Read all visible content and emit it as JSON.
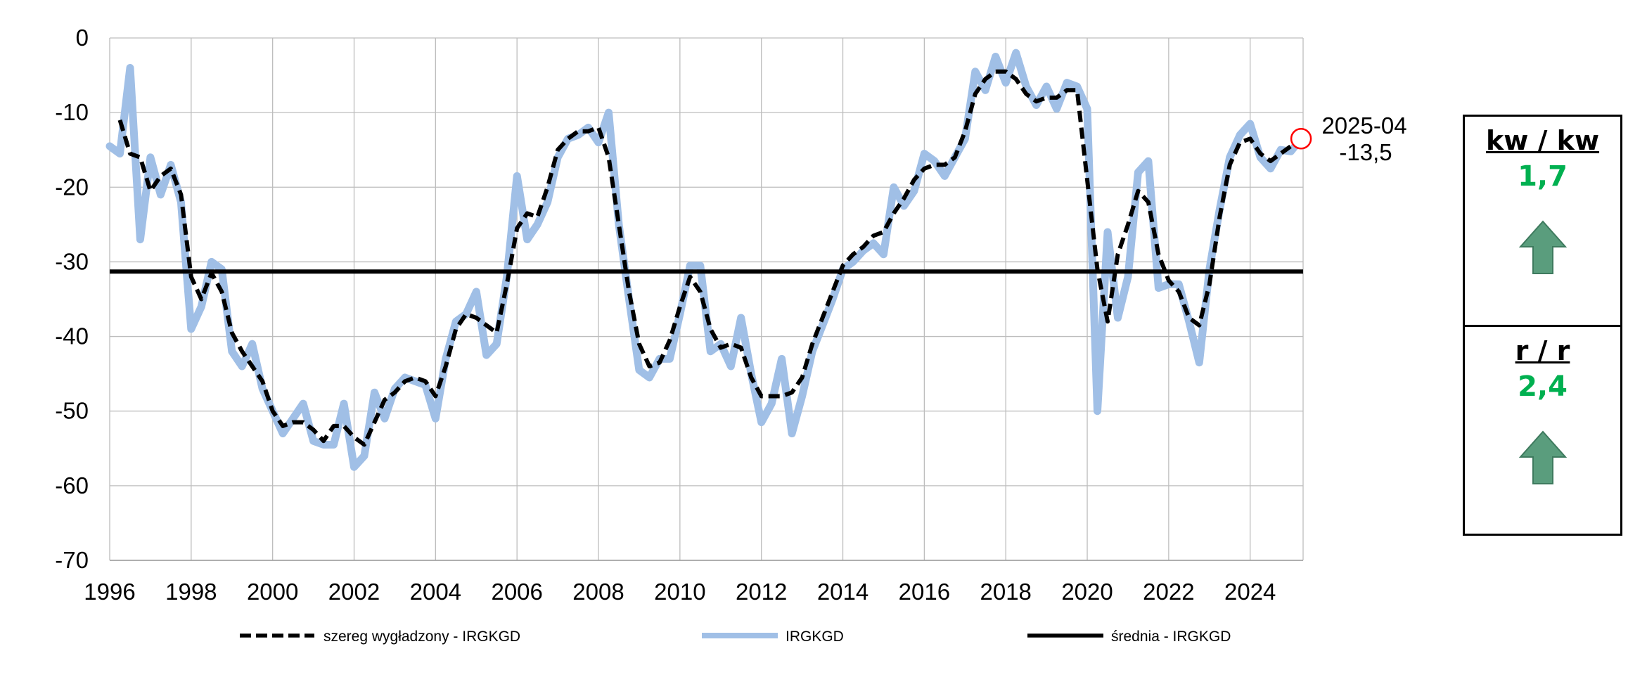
{
  "chart_data": {
    "type": "line",
    "title": "",
    "xlabel": "",
    "ylabel": "",
    "xlim": [
      1996,
      2025.3
    ],
    "ylim": [
      -70,
      0
    ],
    "x_ticks": [
      "1996",
      "1998",
      "2000",
      "2002",
      "2004",
      "2006",
      "2008",
      "2010",
      "2012",
      "2014",
      "2016",
      "2018",
      "2020",
      "2022",
      "2024"
    ],
    "y_ticks": [
      "0",
      "-10",
      "-20",
      "-30",
      "-40",
      "-50",
      "-60",
      "-70"
    ],
    "grid": true,
    "legend_position": "bottom",
    "series": [
      {
        "name": "IRGKGD",
        "color": "#a0bfe6",
        "style": "thick-solid",
        "points": [
          [
            1996.0,
            -14.5
          ],
          [
            1996.25,
            -15.5
          ],
          [
            1996.5,
            -4
          ],
          [
            1996.75,
            -27
          ],
          [
            1997.0,
            -16
          ],
          [
            1997.25,
            -21
          ],
          [
            1997.5,
            -17
          ],
          [
            1997.75,
            -22
          ],
          [
            1998.0,
            -39
          ],
          [
            1998.25,
            -36
          ],
          [
            1998.5,
            -30
          ],
          [
            1998.75,
            -31
          ],
          [
            1999.0,
            -42
          ],
          [
            1999.25,
            -44
          ],
          [
            1999.5,
            -41
          ],
          [
            1999.75,
            -47
          ],
          [
            2000.0,
            -50
          ],
          [
            2000.25,
            -53
          ],
          [
            2000.5,
            -51
          ],
          [
            2000.75,
            -49
          ],
          [
            2001.0,
            -54
          ],
          [
            2001.25,
            -54.5
          ],
          [
            2001.5,
            -54.5
          ],
          [
            2001.75,
            -49
          ],
          [
            2002.0,
            -57.5
          ],
          [
            2002.25,
            -56
          ],
          [
            2002.5,
            -47.5
          ],
          [
            2002.75,
            -51
          ],
          [
            2003.0,
            -47
          ],
          [
            2003.25,
            -45.5
          ],
          [
            2003.5,
            -46
          ],
          [
            2003.75,
            -46.5
          ],
          [
            2004.0,
            -51
          ],
          [
            2004.25,
            -43
          ],
          [
            2004.5,
            -38
          ],
          [
            2004.75,
            -37
          ],
          [
            2005.0,
            -34
          ],
          [
            2005.25,
            -42.5
          ],
          [
            2005.5,
            -41
          ],
          [
            2005.75,
            -32
          ],
          [
            2006.0,
            -18.5
          ],
          [
            2006.25,
            -27
          ],
          [
            2006.5,
            -25
          ],
          [
            2006.75,
            -22
          ],
          [
            2007.0,
            -16
          ],
          [
            2007.25,
            -13.5
          ],
          [
            2007.5,
            -13
          ],
          [
            2007.75,
            -12
          ],
          [
            2008.0,
            -14
          ],
          [
            2008.25,
            -10
          ],
          [
            2008.5,
            -25
          ],
          [
            2008.75,
            -35
          ],
          [
            2009.0,
            -44.5
          ],
          [
            2009.25,
            -45.5
          ],
          [
            2009.5,
            -43
          ],
          [
            2009.75,
            -43
          ],
          [
            2010.0,
            -37
          ],
          [
            2010.25,
            -30.5
          ],
          [
            2010.5,
            -30.5
          ],
          [
            2010.75,
            -42
          ],
          [
            2011.0,
            -41
          ],
          [
            2011.25,
            -44
          ],
          [
            2011.5,
            -37.5
          ],
          [
            2011.75,
            -45
          ],
          [
            2012.0,
            -51.5
          ],
          [
            2012.25,
            -49
          ],
          [
            2012.5,
            -43
          ],
          [
            2012.75,
            -53
          ],
          [
            2013.0,
            -48
          ],
          [
            2013.25,
            -42
          ],
          [
            2013.5,
            -38.5
          ],
          [
            2013.75,
            -35
          ],
          [
            2014.0,
            -31
          ],
          [
            2014.25,
            -30
          ],
          [
            2014.5,
            -28.5
          ],
          [
            2014.75,
            -27.5
          ],
          [
            2015.0,
            -29
          ],
          [
            2015.25,
            -20
          ],
          [
            2015.5,
            -22.5
          ],
          [
            2015.75,
            -20.5
          ],
          [
            2016.0,
            -15.5
          ],
          [
            2016.25,
            -16.5
          ],
          [
            2016.5,
            -18.5
          ],
          [
            2016.75,
            -16
          ],
          [
            2017.0,
            -13.5
          ],
          [
            2017.25,
            -4.5
          ],
          [
            2017.5,
            -7
          ],
          [
            2017.75,
            -2.5
          ],
          [
            2018.0,
            -6
          ],
          [
            2018.25,
            -2
          ],
          [
            2018.5,
            -6.5
          ],
          [
            2018.75,
            -9
          ],
          [
            2019.0,
            -6.5
          ],
          [
            2019.25,
            -9.5
          ],
          [
            2019.5,
            -6
          ],
          [
            2019.75,
            -6.5
          ],
          [
            2020.0,
            -9.5
          ],
          [
            2020.25,
            -50
          ],
          [
            2020.5,
            -26
          ],
          [
            2020.75,
            -37.5
          ],
          [
            2021.0,
            -32
          ],
          [
            2021.25,
            -18
          ],
          [
            2021.5,
            -16.5
          ],
          [
            2021.75,
            -33.5
          ],
          [
            2022.0,
            -33
          ],
          [
            2022.25,
            -33
          ],
          [
            2022.5,
            -38
          ],
          [
            2022.75,
            -43.5
          ],
          [
            2023.0,
            -31
          ],
          [
            2023.25,
            -23
          ],
          [
            2023.5,
            -16
          ],
          [
            2023.75,
            -13
          ],
          [
            2024.0,
            -11.5
          ],
          [
            2024.25,
            -16
          ],
          [
            2024.5,
            -17.5
          ],
          [
            2024.75,
            -15
          ],
          [
            2025.0,
            -15.2
          ],
          [
            2025.25,
            -13.5
          ]
        ]
      },
      {
        "name": "szereg wygładzony - IRGKGD",
        "color": "#000000",
        "style": "dashed",
        "points": [
          [
            1996.25,
            -11
          ],
          [
            1996.5,
            -15.5
          ],
          [
            1996.75,
            -16
          ],
          [
            1997.0,
            -20.5
          ],
          [
            1997.25,
            -18.5
          ],
          [
            1997.5,
            -17.5
          ],
          [
            1997.75,
            -21
          ],
          [
            1998.0,
            -32
          ],
          [
            1998.25,
            -35
          ],
          [
            1998.5,
            -31.5
          ],
          [
            1998.75,
            -34
          ],
          [
            1999.0,
            -39.5
          ],
          [
            1999.25,
            -42
          ],
          [
            1999.5,
            -44
          ],
          [
            1999.75,
            -46
          ],
          [
            2000.0,
            -50
          ],
          [
            2000.25,
            -52
          ],
          [
            2000.5,
            -51.5
          ],
          [
            2000.75,
            -51.5
          ],
          [
            2001.0,
            -52.5
          ],
          [
            2001.25,
            -54
          ],
          [
            2001.5,
            -52
          ],
          [
            2001.75,
            -52
          ],
          [
            2002.0,
            -53.5
          ],
          [
            2002.25,
            -54.5
          ],
          [
            2002.5,
            -51.5
          ],
          [
            2002.75,
            -48.5
          ],
          [
            2003.0,
            -47.5
          ],
          [
            2003.25,
            -46
          ],
          [
            2003.5,
            -45.5
          ],
          [
            2003.75,
            -46
          ],
          [
            2004.0,
            -48
          ],
          [
            2004.25,
            -44
          ],
          [
            2004.5,
            -39
          ],
          [
            2004.75,
            -37
          ],
          [
            2005.0,
            -37.5
          ],
          [
            2005.25,
            -38.5
          ],
          [
            2005.5,
            -39.5
          ],
          [
            2005.75,
            -33
          ],
          [
            2006.0,
            -25.5
          ],
          [
            2006.25,
            -23.5
          ],
          [
            2006.5,
            -24
          ],
          [
            2006.75,
            -20
          ],
          [
            2007.0,
            -15
          ],
          [
            2007.25,
            -13.5
          ],
          [
            2007.5,
            -12.5
          ],
          [
            2007.75,
            -12.5
          ],
          [
            2008.0,
            -12
          ],
          [
            2008.25,
            -16
          ],
          [
            2008.5,
            -25
          ],
          [
            2008.75,
            -34
          ],
          [
            2009.0,
            -41
          ],
          [
            2009.25,
            -44
          ],
          [
            2009.5,
            -43.5
          ],
          [
            2009.75,
            -40.5
          ],
          [
            2010.0,
            -36
          ],
          [
            2010.25,
            -32
          ],
          [
            2010.5,
            -34
          ],
          [
            2010.75,
            -39
          ],
          [
            2011.0,
            -41.5
          ],
          [
            2011.25,
            -41
          ],
          [
            2011.5,
            -41.5
          ],
          [
            2011.75,
            -45.5
          ],
          [
            2012.0,
            -48
          ],
          [
            2012.25,
            -48
          ],
          [
            2012.5,
            -48
          ],
          [
            2012.75,
            -47.5
          ],
          [
            2013.0,
            -45.5
          ],
          [
            2013.25,
            -41
          ],
          [
            2013.5,
            -37.5
          ],
          [
            2013.75,
            -34
          ],
          [
            2014.0,
            -30.5
          ],
          [
            2014.25,
            -29
          ],
          [
            2014.5,
            -28
          ],
          [
            2014.75,
            -26.5
          ],
          [
            2015.0,
            -26
          ],
          [
            2015.25,
            -23.5
          ],
          [
            2015.5,
            -21.5
          ],
          [
            2015.75,
            -19
          ],
          [
            2016.0,
            -17.5
          ],
          [
            2016.25,
            -17
          ],
          [
            2016.5,
            -17
          ],
          [
            2016.75,
            -16
          ],
          [
            2017.0,
            -12.5
          ],
          [
            2017.25,
            -7.5
          ],
          [
            2017.5,
            -5.5
          ],
          [
            2017.75,
            -4.5
          ],
          [
            2018.0,
            -4.5
          ],
          [
            2018.25,
            -5.5
          ],
          [
            2018.5,
            -7.5
          ],
          [
            2018.75,
            -8.5
          ],
          [
            2019.0,
            -8
          ],
          [
            2019.25,
            -8
          ],
          [
            2019.5,
            -7
          ],
          [
            2019.75,
            -7
          ],
          [
            2020.0,
            -19
          ],
          [
            2020.25,
            -31
          ],
          [
            2020.5,
            -38
          ],
          [
            2020.75,
            -29
          ],
          [
            2021.0,
            -25
          ],
          [
            2021.25,
            -20.5
          ],
          [
            2021.5,
            -22
          ],
          [
            2021.75,
            -29
          ],
          [
            2022.0,
            -32.5
          ],
          [
            2022.25,
            -34
          ],
          [
            2022.5,
            -37.5
          ],
          [
            2022.75,
            -38.5
          ],
          [
            2023.0,
            -33
          ],
          [
            2023.25,
            -24
          ],
          [
            2023.5,
            -17
          ],
          [
            2023.75,
            -14
          ],
          [
            2024.0,
            -13.5
          ],
          [
            2024.25,
            -15.5
          ],
          [
            2024.5,
            -16.5
          ],
          [
            2024.75,
            -15.5
          ],
          [
            2025.0,
            -14.5
          ]
        ]
      },
      {
        "name": "średnia - IRGKGD",
        "color": "#000000",
        "style": "solid",
        "value": -31.3
      }
    ],
    "legend": [
      "szereg wygładzony - IRGKGD",
      "IRGKGD",
      "średnia - IRGKGD"
    ],
    "annotation": {
      "date": "2025-04",
      "value": "-13,5",
      "x": 2025.25,
      "y": -13.5,
      "marker_color": "#ff0000"
    }
  },
  "panels": [
    {
      "title": "kw / kw",
      "value": "1,7",
      "value_color": "#00b050",
      "arrow": "up-arrow-icon",
      "arrow_color": "#5a9d7d"
    },
    {
      "title": "r / r",
      "value": "2,4",
      "value_color": "#00b050",
      "arrow": "up-arrow-icon",
      "arrow_color": "#5a9d7d"
    }
  ]
}
